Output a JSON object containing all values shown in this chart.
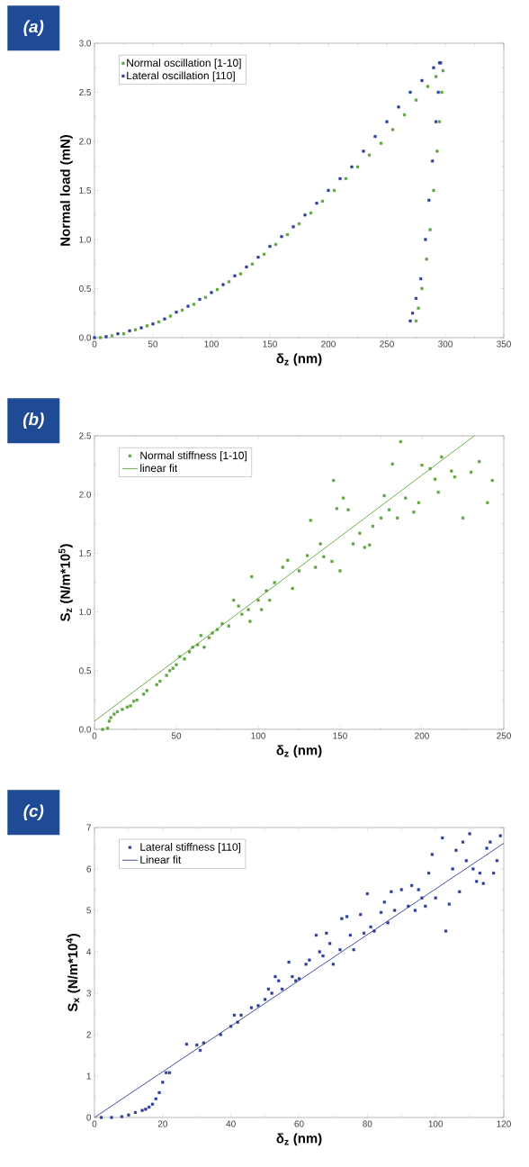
{
  "chart_data": [
    {
      "type": "scatter",
      "title": "(a)",
      "xlabel": "δ$_{z}$ (nm)",
      "ylabel": "Normal load (mN)",
      "xlim": [
        0,
        350
      ],
      "ylim": [
        0,
        3
      ],
      "xticks": [
        0,
        50,
        100,
        150,
        200,
        250,
        300,
        350
      ],
      "yticks": [
        {
          "value": 0,
          "label": "0.0"
        },
        0.5,
        {
          "value": 1,
          "label": "1.0"
        },
        1.5,
        {
          "value": 2,
          "label": "2.0"
        },
        2.5,
        {
          "value": 3,
          "label": "3.0"
        }
      ],
      "marker": "square",
      "legend": "top left",
      "series": [
        {
          "name": "Normal oscillation [1-10]",
          "color": "#5ea33c",
          "x": [
            5,
            15,
            25,
            35,
            45,
            55,
            65,
            75,
            85,
            95,
            105,
            115,
            125,
            135,
            145,
            155,
            165,
            175,
            185,
            195,
            205,
            215,
            225,
            235,
            245,
            255,
            265,
            275,
            285,
            292,
            298,
            297,
            295,
            293,
            290,
            287,
            284,
            280,
            277,
            275
          ],
          "values": [
            0,
            0.02,
            0.04,
            0.08,
            0.12,
            0.16,
            0.22,
            0.28,
            0.34,
            0.41,
            0.49,
            0.57,
            0.65,
            0.75,
            0.85,
            0.95,
            1.05,
            1.16,
            1.27,
            1.39,
            1.5,
            1.62,
            1.74,
            1.86,
            1.98,
            2.12,
            2.27,
            2.42,
            2.56,
            2.66,
            2.72,
            2.5,
            2.2,
            1.9,
            1.5,
            1.1,
            0.8,
            0.5,
            0.3,
            0.17
          ]
        },
        {
          "name": "Lateral oscillation [110]",
          "color": "#2b3f99",
          "x": [
            0,
            10,
            20,
            30,
            40,
            50,
            60,
            70,
            80,
            90,
            100,
            110,
            120,
            130,
            140,
            150,
            160,
            170,
            180,
            190,
            200,
            210,
            220,
            230,
            240,
            250,
            260,
            270,
            280,
            290,
            295,
            296,
            294,
            292,
            289,
            286,
            283,
            279,
            275,
            272,
            270
          ],
          "values": [
            0,
            0.01,
            0.04,
            0.07,
            0.1,
            0.14,
            0.19,
            0.26,
            0.32,
            0.39,
            0.46,
            0.54,
            0.63,
            0.72,
            0.82,
            0.93,
            1.03,
            1.13,
            1.25,
            1.37,
            1.5,
            1.62,
            1.74,
            1.9,
            2.05,
            2.2,
            2.35,
            2.5,
            2.62,
            2.75,
            2.8,
            2.8,
            2.5,
            2.2,
            1.8,
            1.4,
            1.0,
            0.6,
            0.4,
            0.25,
            0.17
          ]
        }
      ]
    },
    {
      "type": "scatter",
      "title": "(b)",
      "xlabel": "δ$_{z}$ (nm)",
      "ylabel": "S$_{z}$ (N/m*10$^{5}$)",
      "xlim": [
        0,
        250
      ],
      "ylim": [
        0,
        2.5
      ],
      "xticks": [
        0,
        50,
        100,
        150,
        200,
        250
      ],
      "yticks": [
        {
          "value": 0,
          "label": "0.0"
        },
        0.5,
        {
          "value": 1,
          "label": "1.0"
        },
        1.5,
        {
          "value": 2,
          "label": "2.0"
        },
        2.5
      ],
      "marker": "square",
      "legend": "top left",
      "series": [
        {
          "name": "Normal stiffness [1-10]",
          "color": "#5ea33c",
          "x": [
            5,
            8,
            9,
            10,
            12,
            14,
            17,
            20,
            22,
            24,
            26,
            30,
            32,
            38,
            40,
            44,
            46,
            48,
            50,
            52,
            55,
            58,
            60,
            63,
            65,
            67,
            70,
            72,
            75,
            78,
            82,
            85,
            88,
            90,
            94,
            95,
            96,
            100,
            102,
            105,
            107,
            110,
            115,
            118,
            121,
            125,
            130,
            132,
            135,
            138,
            140,
            145,
            146,
            148,
            150,
            152,
            155,
            158,
            162,
            165,
            168,
            170,
            175,
            177,
            180,
            182,
            185,
            187,
            190,
            195,
            198,
            200,
            205,
            208,
            210,
            212,
            218,
            220,
            225,
            230,
            235,
            240,
            243
          ],
          "values": [
            0.0,
            0.01,
            0.07,
            0.1,
            0.13,
            0.15,
            0.17,
            0.19,
            0.2,
            0.24,
            0.25,
            0.3,
            0.33,
            0.38,
            0.41,
            0.46,
            0.5,
            0.52,
            0.55,
            0.62,
            0.6,
            0.66,
            0.7,
            0.72,
            0.8,
            0.7,
            0.78,
            0.82,
            0.85,
            0.9,
            0.88,
            1.1,
            1.05,
            0.98,
            1.02,
            0.92,
            1.3,
            1.1,
            1.02,
            1.18,
            1.1,
            1.25,
            1.38,
            1.44,
            1.2,
            1.35,
            1.48,
            1.78,
            1.38,
            1.58,
            1.47,
            1.43,
            2.12,
            1.88,
            1.35,
            1.97,
            1.87,
            1.58,
            1.67,
            1.55,
            1.57,
            1.73,
            1.8,
            1.99,
            1.87,
            2.26,
            1.8,
            2.45,
            1.97,
            1.85,
            1.93,
            2.25,
            2.22,
            2.13,
            2.02,
            2.32,
            2.2,
            2.15,
            1.8,
            2.19,
            2.28,
            1.93,
            2.12
          ]
        },
        {
          "name": "linear fit",
          "type": "line",
          "marker": "none",
          "color": "#5ea33c",
          "x": [
            0,
            232
          ],
          "values": [
            0.07,
            2.5
          ]
        }
      ]
    },
    {
      "type": "scatter",
      "title": "(c)",
      "xlabel": "δ$_{z}$ (nm)",
      "ylabel": "S$_{x}$ (N/m*10$^{4}$)",
      "xlim": [
        0,
        120
      ],
      "ylim": [
        0,
        7
      ],
      "xticks": [
        0,
        20,
        40,
        60,
        80,
        100,
        120
      ],
      "yticks": [
        0,
        1,
        2,
        3,
        4,
        5,
        6,
        7
      ],
      "marker": "square",
      "legend": "top left",
      "series": [
        {
          "name": "Lateral stiffness [110]",
          "color": "#2b3f99",
          "x": [
            2,
            5,
            8,
            10,
            12,
            14,
            15,
            16,
            17,
            18,
            19,
            20,
            21,
            22,
            27,
            30,
            31,
            32,
            37,
            40,
            41,
            42,
            43,
            46,
            48,
            50,
            51,
            52,
            53,
            54,
            55,
            57,
            58,
            59,
            60,
            62,
            63,
            65,
            66,
            67,
            68,
            69,
            70,
            72,
            72.5,
            74,
            75,
            76,
            78,
            79,
            80,
            81,
            82,
            84,
            85,
            86,
            87,
            88,
            90,
            92,
            93,
            94,
            95,
            96,
            97,
            98,
            99,
            100,
            102,
            103,
            104,
            105,
            106,
            107,
            108,
            109,
            110,
            111,
            112,
            113,
            114,
            115,
            116,
            117,
            118,
            119
          ],
          "values": [
            0,
            0,
            0.02,
            0.06,
            0.12,
            0.17,
            0.2,
            0.25,
            0.32,
            0.45,
            0.6,
            0.85,
            1.08,
            1.08,
            1.77,
            1.75,
            1.62,
            1.8,
            2.0,
            2.2,
            2.47,
            2.3,
            2.47,
            2.65,
            2.7,
            2.85,
            3.1,
            3.0,
            3.4,
            3.3,
            3.1,
            3.75,
            3.4,
            3.3,
            3.35,
            3.7,
            3.8,
            4.4,
            4.0,
            3.9,
            4.45,
            4.2,
            3.7,
            4.05,
            4.8,
            4.85,
            4.4,
            4.05,
            4.9,
            4.45,
            5.4,
            4.6,
            4.5,
            4.95,
            5.2,
            4.7,
            5.45,
            5.0,
            5.5,
            5.1,
            5.6,
            5.0,
            5.5,
            5.3,
            5.1,
            5.9,
            6.35,
            5.3,
            6.75,
            4.5,
            5.15,
            6.0,
            6.45,
            5.45,
            6.65,
            6.2,
            6.85,
            6.0,
            5.7,
            5.9,
            5.65,
            6.5,
            6.65,
            5.9,
            6.2,
            6.8
          ]
        },
        {
          "name": "Linear fit",
          "type": "line",
          "marker": "none",
          "color": "#2b3f99",
          "x": [
            0,
            120
          ],
          "values": [
            0,
            6.62
          ]
        }
      ]
    }
  ]
}
